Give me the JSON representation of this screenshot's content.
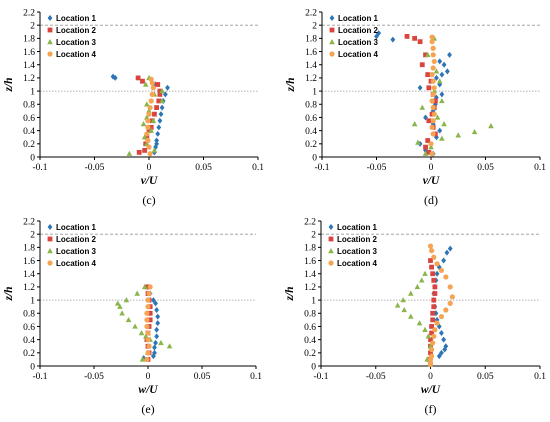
{
  "colors": {
    "location_1": "#2e75b6",
    "location_2": "#d9443e",
    "location_3": "#8ab54b",
    "location_4": "#f4a452",
    "grid_reference": "#999999"
  },
  "chart_data": [
    {
      "type": "scatter",
      "caption": "(c)",
      "xlabel": "v/U",
      "ylabel": "z/h",
      "xlim": [
        -0.1,
        0.1
      ],
      "ylim": [
        0,
        2.2
      ],
      "xticks": [
        "-0.1",
        "-0.05",
        "0",
        "0.05",
        "0.1"
      ],
      "yticks": [
        "0",
        "0.2",
        "0.4",
        "0.6",
        "0.8",
        "1",
        "1.2",
        "1.4",
        "1.6",
        "1.8",
        "2",
        "2.2"
      ],
      "reference_lines": [
        1.0,
        2.0
      ],
      "grid": false,
      "legend_position": "top-left",
      "series": [
        {
          "name": "Location 1",
          "marker": "diamond",
          "x": [
            -0.033,
            -0.031,
            0.006,
            0.017,
            0.015,
            0.013,
            0.012,
            0.011,
            0.01,
            0.009,
            0.008,
            0.007,
            0.007,
            0.006,
            0.005
          ],
          "y": [
            1.22,
            1.2,
            1.1,
            1.05,
            0.95,
            0.85,
            0.75,
            0.65,
            0.55,
            0.45,
            0.35,
            0.25,
            0.2,
            0.15,
            0.07
          ]
        },
        {
          "name": "Location 2",
          "marker": "square",
          "x": [
            -0.01,
            -0.006,
            0.008,
            0.01,
            0.01,
            0.009,
            0.007,
            0.005,
            0.003,
            0.002,
            0.0,
            -0.002,
            -0.003,
            -0.004,
            -0.009
          ],
          "y": [
            1.2,
            1.15,
            1.1,
            1.0,
            0.95,
            0.85,
            0.75,
            0.65,
            0.55,
            0.45,
            0.4,
            0.3,
            0.2,
            0.1,
            0.07
          ]
        },
        {
          "name": "Location 3",
          "marker": "triangle",
          "x": [
            0.0,
            -0.003,
            0.012,
            0.005,
            0.012,
            -0.002,
            0.0,
            -0.002,
            0.004,
            -0.005,
            0.002,
            -0.004,
            -0.002,
            0.005,
            -0.018
          ],
          "y": [
            1.2,
            1.1,
            1.0,
            0.95,
            0.85,
            0.8,
            0.7,
            0.6,
            0.55,
            0.5,
            0.4,
            0.3,
            0.2,
            0.1,
            0.05
          ]
        },
        {
          "name": "Location 4",
          "marker": "circle",
          "x": [
            0.002,
            0.003,
            0.004,
            0.003,
            0.002,
            0.001,
            0.0,
            -0.001,
            -0.001,
            -0.002,
            -0.001,
            0.0,
            0.001
          ],
          "y": [
            1.18,
            1.12,
            1.05,
            0.95,
            0.85,
            0.75,
            0.65,
            0.55,
            0.45,
            0.35,
            0.25,
            0.15,
            0.05
          ]
        }
      ]
    },
    {
      "type": "scatter",
      "caption": "(d)",
      "xlabel": "v/U",
      "ylabel": "z/h",
      "xlim": [
        -0.1,
        0.1
      ],
      "ylim": [
        0,
        2.2
      ],
      "xticks": [
        "-0.1",
        "-0.05",
        "0",
        "0.05",
        "0.1"
      ],
      "yticks": [
        "0",
        "0.2",
        "0.4",
        "0.6",
        "0.8",
        "1",
        "1.2",
        "1.4",
        "1.6",
        "1.8",
        "2",
        "2.2"
      ],
      "reference_lines": [
        1.0,
        2.0
      ],
      "grid": false,
      "legend_position": "top-left",
      "series": [
        {
          "name": "Location 1",
          "marker": "diamond",
          "x": [
            -0.048,
            -0.05,
            -0.035,
            0.017,
            0.008,
            0.012,
            0.015,
            0.01,
            0.005,
            0.008,
            -0.01,
            0.01,
            0.005,
            0.004,
            0.002,
            -0.005,
            0.002,
            0.008,
            0.005,
            -0.01,
            -0.005,
            0.002
          ],
          "y": [
            1.88,
            1.83,
            1.78,
            1.55,
            1.45,
            1.4,
            1.3,
            1.25,
            1.2,
            1.1,
            1.05,
            0.95,
            0.9,
            0.8,
            0.7,
            0.6,
            0.5,
            0.4,
            0.3,
            0.2,
            0.1,
            0.05
          ]
        },
        {
          "name": "Location 2",
          "marker": "square",
          "x": [
            -0.022,
            -0.015,
            -0.01,
            -0.005,
            -0.008,
            -0.003,
            0.0,
            -0.002,
            0.002,
            0.004,
            0.003,
            0.001,
            -0.002,
            0.002,
            0.004,
            -0.003,
            -0.005,
            -0.002
          ],
          "y": [
            1.83,
            1.8,
            1.75,
            1.55,
            1.4,
            1.25,
            1.15,
            1.05,
            0.95,
            0.85,
            0.75,
            0.65,
            0.55,
            0.45,
            0.35,
            0.25,
            0.15,
            0.07
          ]
        },
        {
          "name": "Location 3",
          "marker": "triangle",
          "x": [
            0.003,
            -0.003,
            0.005,
            0.008,
            0.003,
            0.01,
            -0.008,
            0.006,
            -0.015,
            0.012,
            0.055,
            0.04,
            0.025,
            0.01,
            -0.012,
            0.0,
            -0.005
          ],
          "y": [
            1.8,
            1.55,
            1.3,
            1.15,
            1.0,
            0.85,
            0.75,
            0.6,
            0.5,
            0.5,
            0.47,
            0.38,
            0.33,
            0.28,
            0.22,
            0.15,
            0.05
          ]
        },
        {
          "name": "Location 4",
          "marker": "circle",
          "x": [
            0.001,
            0.001,
            0.002,
            0.002,
            0.003,
            0.002,
            0.001,
            0.002,
            0.003,
            0.002,
            0.001,
            0.002,
            0.003,
            0.002,
            0.001,
            0.002,
            0.0,
            0.001
          ],
          "y": [
            1.82,
            1.75,
            1.65,
            1.55,
            1.45,
            1.35,
            1.25,
            1.15,
            1.05,
            0.95,
            0.85,
            0.75,
            0.65,
            0.55,
            0.45,
            0.35,
            0.2,
            0.05
          ]
        }
      ]
    },
    {
      "type": "scatter",
      "caption": "(e)",
      "xlabel": "w/U",
      "ylabel": "z/h",
      "xlim": [
        -0.1,
        0.1
      ],
      "ylim": [
        0,
        2.2
      ],
      "xticks": [
        "-0.1",
        "-0.05",
        "0",
        "0.05",
        "0.1"
      ],
      "yticks": [
        "0",
        "0.2",
        "0.4",
        "0.6",
        "0.8",
        "1",
        "1.2",
        "1.4",
        "1.6",
        "1.8",
        "2",
        "2.2"
      ],
      "reference_lines": [
        1.0,
        2.0
      ],
      "grid": false,
      "legend_position": "top-left",
      "series": [
        {
          "name": "Location 1",
          "marker": "diamond",
          "x": [
            0.0,
            0.002,
            0.005,
            0.007,
            0.008,
            0.009,
            0.009,
            0.008,
            0.008,
            0.007,
            0.006,
            0.006,
            0.005,
            -0.004
          ],
          "y": [
            1.2,
            1.1,
            1.0,
            0.95,
            0.85,
            0.75,
            0.65,
            0.55,
            0.45,
            0.35,
            0.28,
            0.2,
            0.15,
            0.12
          ]
        },
        {
          "name": "Location 2",
          "marker": "square",
          "x": [
            -0.001,
            0.0,
            0.001,
            0.002,
            0.002,
            0.002,
            0.001,
            0.0,
            -0.001,
            0.0,
            0.001,
            0.0
          ],
          "y": [
            1.2,
            1.1,
            1.0,
            0.9,
            0.8,
            0.7,
            0.6,
            0.5,
            0.4,
            0.3,
            0.2,
            0.1
          ]
        },
        {
          "name": "Location 3",
          "marker": "triangle",
          "x": [
            -0.003,
            -0.01,
            -0.02,
            -0.028,
            -0.026,
            -0.024,
            -0.018,
            -0.012,
            -0.006,
            -0.002,
            0.002,
            0.012,
            0.02,
            0.0,
            -0.005
          ],
          "y": [
            1.2,
            1.1,
            1.0,
            0.95,
            0.9,
            0.8,
            0.7,
            0.6,
            0.5,
            0.45,
            0.4,
            0.35,
            0.3,
            0.2,
            0.1
          ]
        },
        {
          "name": "Location 4",
          "marker": "circle",
          "x": [
            0.002,
            0.001,
            0.0,
            0.0,
            -0.001,
            -0.001,
            -0.001,
            0.0,
            0.0,
            0.001,
            0.0,
            -0.001
          ],
          "y": [
            1.2,
            1.1,
            1.0,
            0.9,
            0.8,
            0.7,
            0.6,
            0.5,
            0.4,
            0.3,
            0.2,
            0.1
          ]
        }
      ]
    },
    {
      "type": "scatter",
      "caption": "(f)",
      "xlabel": "w/U",
      "ylabel": "z/h",
      "xlim": [
        -0.1,
        0.1
      ],
      "ylim": [
        0,
        2.2
      ],
      "xticks": [
        "-0.1",
        "-0.05",
        "0",
        "0.05",
        "0.1"
      ],
      "yticks": [
        "0",
        "0.2",
        "0.4",
        "0.6",
        "0.8",
        "1",
        "1.2",
        "1.4",
        "1.6",
        "1.8",
        "2",
        "2.2"
      ],
      "reference_lines": [
        1.0,
        2.0
      ],
      "grid": false,
      "legend_position": "top-left",
      "series": [
        {
          "name": "Location 1",
          "marker": "diamond",
          "x": [
            0.018,
            0.015,
            0.012,
            0.008,
            0.006,
            0.005,
            0.004,
            0.003,
            0.003,
            0.004,
            0.005,
            0.006,
            0.008,
            0.01,
            0.012,
            0.014,
            0.013,
            0.01,
            0.008
          ],
          "y": [
            1.78,
            1.72,
            1.6,
            1.5,
            1.4,
            1.3,
            1.2,
            1.1,
            1.0,
            0.9,
            0.8,
            0.7,
            0.6,
            0.5,
            0.4,
            0.3,
            0.25,
            0.2,
            0.15
          ]
        },
        {
          "name": "Location 2",
          "marker": "square",
          "x": [
            0.0,
            0.001,
            0.002,
            0.003,
            0.004,
            0.004,
            0.003,
            0.003,
            0.002,
            0.002,
            0.001,
            0.001,
            0.0,
            0.0,
            0.0,
            -0.001
          ],
          "y": [
            1.6,
            1.5,
            1.4,
            1.3,
            1.2,
            1.1,
            1.0,
            0.9,
            0.8,
            0.7,
            0.6,
            0.5,
            0.4,
            0.3,
            0.2,
            0.1
          ]
        },
        {
          "name": "Location 3",
          "marker": "triangle",
          "x": [
            -0.005,
            -0.008,
            -0.012,
            -0.018,
            -0.025,
            -0.03,
            -0.024,
            -0.018,
            -0.01,
            -0.005,
            -0.002,
            0.0,
            -0.003
          ],
          "y": [
            1.4,
            1.3,
            1.2,
            1.1,
            1.0,
            0.92,
            0.85,
            0.75,
            0.65,
            0.55,
            0.45,
            0.3,
            0.1
          ]
        },
        {
          "name": "Location 4",
          "marker": "circle",
          "x": [
            0.0,
            0.001,
            0.003,
            0.006,
            0.01,
            0.014,
            0.018,
            0.02,
            0.018,
            0.014,
            0.01,
            0.006,
            0.004,
            0.003,
            0.002,
            0.001,
            0.001,
            0.0,
            0.0,
            0.0
          ],
          "y": [
            1.82,
            1.75,
            1.65,
            1.55,
            1.45,
            1.35,
            1.2,
            1.05,
            0.95,
            0.85,
            0.75,
            0.65,
            0.55,
            0.45,
            0.35,
            0.25,
            0.15,
            0.1,
            0.05,
            0.02
          ]
        }
      ]
    }
  ]
}
